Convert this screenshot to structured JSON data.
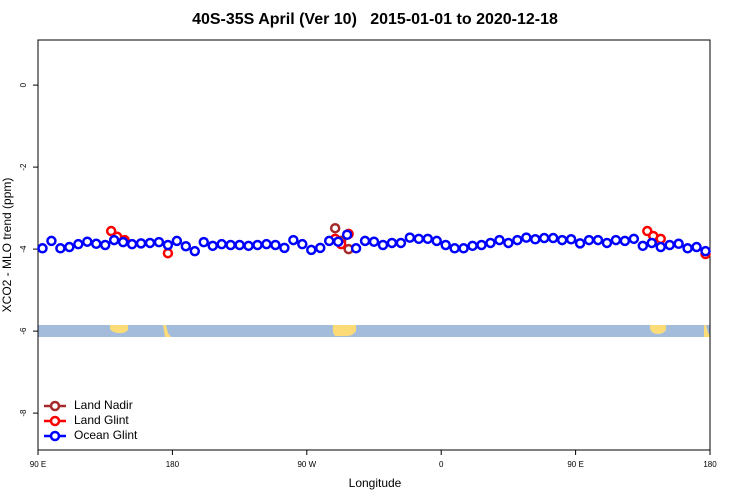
{
  "chart_data": {
    "type": "scatter",
    "title": "40S-35S April (Ver 10)   2015-01-01 to 2020-12-18",
    "x_label": "Longitude",
    "y_label": "XCO2 - MLO trend (ppm)",
    "xlim": [
      90,
      540
    ],
    "ylim": [
      -8.9,
      1.1
    ],
    "xticks": [
      {
        "value": 90,
        "label": "90 E"
      },
      {
        "value": 180,
        "label": "180"
      },
      {
        "value": 270,
        "label": "90 W"
      },
      {
        "value": 360,
        "label": "0"
      },
      {
        "value": 450,
        "label": "90 E"
      },
      {
        "value": 540,
        "label": "180"
      }
    ],
    "yticks": [
      -8,
      -6,
      -4,
      -2,
      0
    ],
    "legend": "bottomleft",
    "series": [
      {
        "name": "Land Nadir",
        "color": "#a52a2a",
        "x": [
          289,
          293,
          298
        ],
        "values": [
          -3.49,
          -3.8,
          -4.0
        ]
      },
      {
        "name": "Land Glint",
        "color": "#ff0000",
        "x": [
          139,
          143,
          148,
          177,
          289,
          293,
          298,
          498,
          502,
          507,
          537
        ],
        "values": [
          -3.56,
          -3.7,
          -3.78,
          -4.1,
          -3.75,
          -3.88,
          -3.63,
          -3.56,
          -3.68,
          -3.75,
          -4.12
        ]
      },
      {
        "name": "Ocean Glint",
        "color": "#0000ff",
        "x": [
          93,
          99,
          105,
          111,
          117,
          123,
          129,
          135,
          141,
          147,
          153,
          159,
          165,
          171,
          177,
          183,
          189,
          195,
          201,
          207,
          213,
          219,
          225,
          231,
          237,
          243,
          249,
          255,
          261,
          267,
          273,
          279,
          285,
          291,
          297,
          303,
          309,
          315,
          321,
          327,
          333,
          339,
          345,
          351,
          357,
          363,
          369,
          375,
          381,
          387,
          393,
          399,
          405,
          411,
          417,
          423,
          429,
          435,
          441,
          447,
          453,
          459,
          465,
          471,
          477,
          483,
          489,
          495,
          501,
          507,
          513,
          519,
          525,
          531,
          537
        ],
        "values": [
          -3.98,
          -3.8,
          -3.98,
          -3.95,
          -3.88,
          -3.82,
          -3.87,
          -3.9,
          -3.78,
          -3.83,
          -3.88,
          -3.86,
          -3.85,
          -3.83,
          -3.9,
          -3.8,
          -3.93,
          -4.05,
          -3.83,
          -3.92,
          -3.88,
          -3.9,
          -3.9,
          -3.92,
          -3.9,
          -3.88,
          -3.9,
          -3.97,
          -3.78,
          -3.88,
          -4.02,
          -3.97,
          -3.8,
          -3.82,
          -3.65,
          -3.98,
          -3.8,
          -3.82,
          -3.9,
          -3.85,
          -3.85,
          -3.72,
          -3.75,
          -3.75,
          -3.8,
          -3.9,
          -3.98,
          -3.98,
          -3.92,
          -3.9,
          -3.85,
          -3.78,
          -3.85,
          -3.78,
          -3.72,
          -3.76,
          -3.73,
          -3.73,
          -3.78,
          -3.76,
          -3.86,
          -3.78,
          -3.78,
          -3.85,
          -3.78,
          -3.8,
          -3.75,
          -3.92,
          -3.85,
          -3.95,
          -3.9,
          -3.87,
          -3.98,
          -3.95,
          -4.05
        ]
      }
    ]
  }
}
